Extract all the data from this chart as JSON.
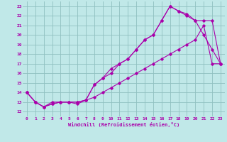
{
  "xlabel": "Windchill (Refroidissement éolien,°C)",
  "background_color": "#c0e8e8",
  "grid_color": "#90c0c0",
  "line_color": "#aa00aa",
  "xlim": [
    -0.5,
    23.5
  ],
  "ylim": [
    11.5,
    23.5
  ],
  "xticks": [
    0,
    1,
    2,
    3,
    4,
    5,
    6,
    7,
    8,
    9,
    10,
    11,
    12,
    13,
    14,
    15,
    16,
    17,
    18,
    19,
    20,
    21,
    22,
    23
  ],
  "yticks": [
    12,
    13,
    14,
    15,
    16,
    17,
    18,
    19,
    20,
    21,
    22,
    23
  ],
  "series1_x": [
    0,
    1,
    2,
    3,
    4,
    5,
    6,
    7,
    8,
    9,
    10,
    11,
    12,
    13,
    14,
    15,
    16,
    17,
    18,
    19,
    20,
    21,
    22,
    23
  ],
  "series1_y": [
    14.0,
    13.0,
    12.5,
    13.0,
    13.0,
    13.0,
    12.8,
    13.2,
    14.8,
    15.5,
    16.0,
    17.0,
    17.5,
    18.5,
    19.5,
    20.0,
    21.5,
    23.0,
    22.5,
    22.2,
    21.5,
    20.0,
    18.5,
    17.0
  ],
  "series2_x": [
    0,
    1,
    2,
    3,
    4,
    5,
    6,
    7,
    8,
    9,
    10,
    11,
    12,
    13,
    14,
    15,
    16,
    17,
    18,
    19,
    20,
    21,
    22,
    23
  ],
  "series2_y": [
    14.0,
    13.0,
    12.5,
    12.8,
    13.0,
    13.0,
    13.0,
    13.2,
    13.5,
    14.0,
    14.5,
    15.0,
    15.5,
    16.0,
    16.5,
    17.0,
    17.5,
    18.0,
    18.5,
    19.0,
    19.5,
    21.0,
    17.0,
    17.0
  ],
  "series3_x": [
    0,
    1,
    2,
    3,
    4,
    5,
    6,
    7,
    8,
    9,
    10,
    11,
    12,
    13,
    14,
    15,
    16,
    17,
    18,
    19,
    20,
    21,
    22,
    23
  ],
  "series3_y": [
    14.0,
    13.0,
    12.5,
    12.8,
    13.0,
    13.0,
    13.0,
    13.2,
    14.8,
    15.5,
    16.5,
    17.0,
    17.5,
    18.5,
    19.5,
    20.0,
    21.5,
    23.0,
    22.5,
    22.0,
    21.5,
    21.5,
    21.5,
    17.0
  ]
}
